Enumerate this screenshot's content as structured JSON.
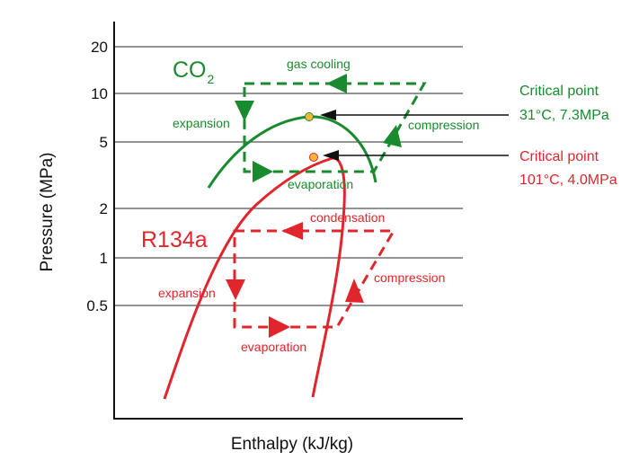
{
  "axes": {
    "ylabel": "Pressure (MPa)",
    "xlabel": "Enthalpy (kJ/kg)",
    "y_scale": "log",
    "y_ticks": [
      "20",
      "10",
      "5",
      "2",
      "1",
      "0.5"
    ],
    "grid": "horizontal lines at each y tick"
  },
  "co2": {
    "name_main": "CO",
    "name_sub": "2",
    "labels": {
      "gas_cooling": "gas cooling",
      "expansion": "expansion",
      "compression": "compression",
      "evaporation": "evaporation"
    },
    "critical_point": {
      "title": "Critical point",
      "value": "31°C, 7.3MPa"
    }
  },
  "r134a": {
    "name": "R134a",
    "labels": {
      "condensation": "condensation",
      "expansion": "expansion",
      "compression": "compression",
      "evaporation": "evaporation"
    },
    "critical_point": {
      "title": "Critical point",
      "value": "101°C, 4.0MPa"
    }
  },
  "colors": {
    "co2": "#1a8a2e",
    "r134a": "#e0262c",
    "grid": "#555555",
    "axis": "#111111",
    "critical_point_marker": "#f7b733",
    "pointer_arrow": "#111111"
  }
}
